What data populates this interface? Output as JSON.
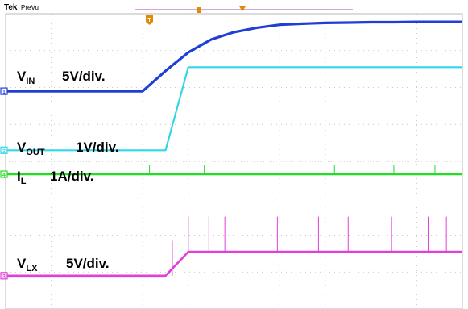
{
  "header": {
    "brand": "Tek",
    "mode": "PreVu"
  },
  "colors": {
    "vin": "#1f3fd6",
    "vout": "#33d6e6",
    "il": "#22dd22",
    "vlx": "#e040d8",
    "grid": "#b8b8b8",
    "trigger": "#e08a00",
    "record_bar": "#b04ab0"
  },
  "markers": {
    "trigger_label": "T"
  },
  "chart_data": {
    "type": "line",
    "title": "",
    "grid": true,
    "divisions": {
      "x": 10,
      "y": 8
    },
    "x": [
      0.0,
      0.5,
      1.0,
      1.5,
      2.0,
      2.5,
      3.0,
      3.5,
      4.0,
      4.5,
      5.0,
      5.5,
      6.0,
      6.5,
      7.0,
      7.5,
      8.0,
      8.5,
      9.0,
      9.5,
      10.0
    ],
    "series": [
      {
        "id": "vin",
        "name": "V",
        "subscript": "IN",
        "scale": "5V/div.",
        "channel": "1",
        "values": [
          5.9,
          5.9,
          5.9,
          5.9,
          5.9,
          5.9,
          5.9,
          6.45,
          6.95,
          7.3,
          7.5,
          7.62,
          7.7,
          7.73,
          7.75,
          7.76,
          7.77,
          7.77,
          7.78,
          7.78,
          7.78
        ]
      },
      {
        "id": "vout",
        "name": "V",
        "subscript": "OUT",
        "scale": "1V/div.",
        "channel": "2",
        "values": [
          4.3,
          4.3,
          4.3,
          4.3,
          4.3,
          4.3,
          4.3,
          4.3,
          6.55,
          6.55,
          6.55,
          6.55,
          6.55,
          6.55,
          6.55,
          6.55,
          6.55,
          6.55,
          6.55,
          6.55,
          6.55
        ]
      },
      {
        "id": "il",
        "name": "I",
        "subscript": "L",
        "scale": "1A/div.",
        "channel": "4",
        "values": [
          3.65,
          3.65,
          3.65,
          3.65,
          3.65,
          3.65,
          3.65,
          3.65,
          3.65,
          3.65,
          3.65,
          3.65,
          3.65,
          3.65,
          3.65,
          3.65,
          3.65,
          3.65,
          3.65,
          3.65,
          3.65
        ],
        "spike_times": [
          3.15,
          4.35,
          5.0,
          5.9,
          7.2,
          8.5,
          9.4
        ]
      },
      {
        "id": "vlx",
        "name": "V",
        "subscript": "LX",
        "scale": "5V/div.",
        "channel": "3",
        "values": [
          0.9,
          0.9,
          0.9,
          0.9,
          0.9,
          0.9,
          0.9,
          0.9,
          1.55,
          1.55,
          1.55,
          1.55,
          1.55,
          1.55,
          1.55,
          1.55,
          1.55,
          1.55,
          1.55,
          1.55,
          1.55
        ],
        "spike_times": [
          3.65,
          4.0,
          4.45,
          4.8,
          5.95,
          6.85,
          7.5,
          8.45,
          9.25,
          9.65
        ]
      }
    ]
  }
}
